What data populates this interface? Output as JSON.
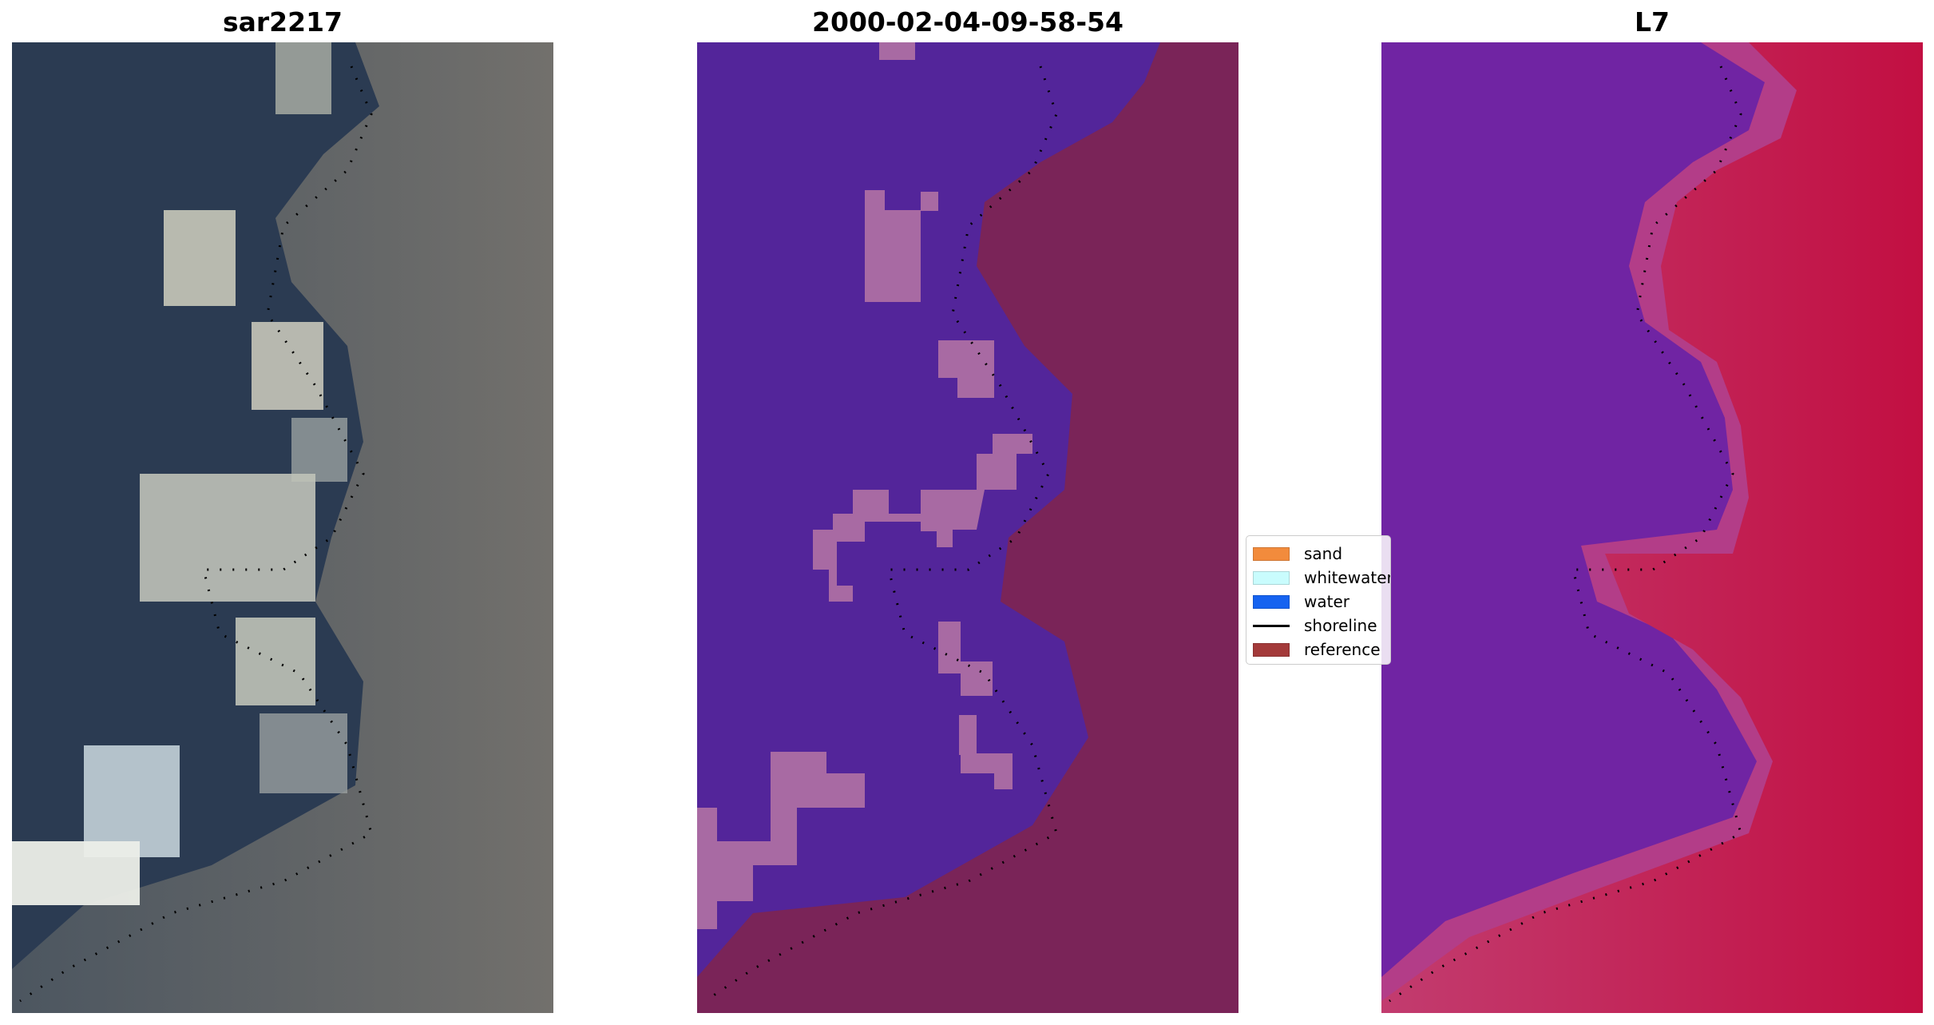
{
  "panels": [
    {
      "title": "sar2217"
    },
    {
      "title": "2000-02-04-09-58-54"
    },
    {
      "title": "L7"
    }
  ],
  "legend": {
    "items": [
      {
        "label": "sand",
        "color": "#f28b3c",
        "type": "patch"
      },
      {
        "label": "whitewater",
        "color": "#c9fcfd",
        "type": "patch"
      },
      {
        "label": "water",
        "color": "#1663f0",
        "type": "patch"
      },
      {
        "label": "shoreline",
        "color": "#000000",
        "type": "line"
      },
      {
        "label": "reference",
        "color": "#a33a3a",
        "type": "patch"
      }
    ]
  },
  "colors": {
    "rgb_water": "#2a3a52",
    "rgb_land": "#6b6866",
    "class_water": "#53259a",
    "class_land": "#7a2458",
    "class_sand": "#a86aa3",
    "mndwi_low": "#6a1ea8",
    "mndwi_high": "#c4103e",
    "shoreline": "#000000"
  }
}
